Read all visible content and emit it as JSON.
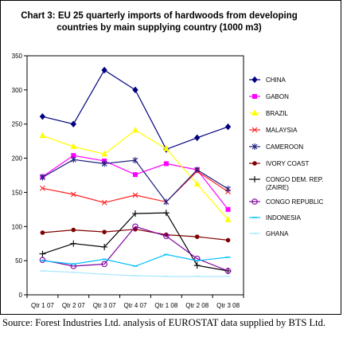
{
  "chart_data": {
    "type": "line",
    "title_lines": [
      "Chart 3: EU 25 quarterly imports of hardwoods from developing",
      "countries by main supplying country (1000 m3)"
    ],
    "categories": [
      "Qtr 1 07",
      "Qtr 2 07",
      "Qtr 3 07",
      "Qtr 4 07",
      "Qtr 1 08",
      "Qtr 2 08",
      "Qtr 3 08"
    ],
    "ylim": [
      0,
      350
    ],
    "yticks": [
      0,
      50,
      100,
      150,
      200,
      250,
      300,
      350
    ],
    "grid": false,
    "legend_placement": "right",
    "series": [
      {
        "name": "CHINA",
        "values": [
          261,
          250,
          329,
          300,
          213,
          230,
          246
        ],
        "color": "#000080",
        "marker": "diamond"
      },
      {
        "name": "GABON",
        "values": [
          173,
          204,
          196,
          176,
          192,
          183,
          125
        ],
        "color": "#ff00ff",
        "marker": "square"
      },
      {
        "name": "BRAZIL",
        "values": [
          233,
          217,
          206,
          241,
          214,
          162,
          110
        ],
        "color": "#ffff00",
        "marker": "triangle"
      },
      {
        "name": "MALAYSIA",
        "values": [
          156,
          147,
          135,
          146,
          136,
          181,
          151
        ],
        "color": "#ff2020",
        "marker": "x"
      },
      {
        "name": "CAMEROON",
        "values": [
          172,
          198,
          192,
          197,
          136,
          183,
          155
        ],
        "color": "#202080",
        "marker": "star"
      },
      {
        "name": "IVORY COAST",
        "values": [
          91,
          95,
          92,
          96,
          88,
          85,
          80
        ],
        "color": "#800000",
        "marker": "circle"
      },
      {
        "name": "CONGO DEM. REP. (ZAIRE)",
        "values": [
          60,
          75,
          70,
          119,
          120,
          43,
          35
        ],
        "color": "#000000",
        "marker": "plus"
      },
      {
        "name": "CONGO REPUBLIC",
        "values": [
          51,
          42,
          45,
          100,
          86,
          53,
          35
        ],
        "color": "#8000a0",
        "marker": "ocircle"
      },
      {
        "name": "INDONESIA",
        "values": [
          50,
          45,
          52,
          42,
          59,
          50,
          55
        ],
        "color": "#00c0ff",
        "marker": "dash"
      },
      {
        "name": "GHANA",
        "values": [
          35,
          33,
          30,
          28,
          27,
          27,
          27
        ],
        "color": "#a8e8ff",
        "marker": "dash"
      }
    ]
  },
  "source_text": "Source: Forest Industries Ltd. analysis of EUROSTAT data supplied by BTS Ltd."
}
